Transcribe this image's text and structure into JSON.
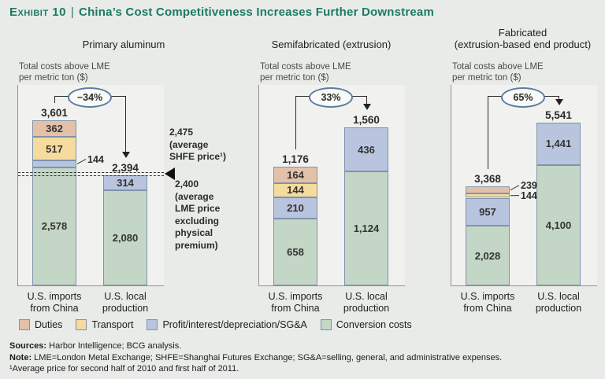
{
  "header": {
    "eyebrow": "Exhibit 10",
    "divider": "|",
    "title": "China’s Cost Competitiveness Increases Further Downstream"
  },
  "colors": {
    "duties": "#e3c1a9",
    "transport": "#f5dc9e",
    "profit": "#b9c4de",
    "conversion": "#c4d6c6",
    "segment_border": "#7f93ab",
    "title_accent": "#1c7a64",
    "page_background": "#e8ebe7"
  },
  "chart_data": [
    {
      "type": "bar",
      "stacked": true,
      "title": "Primary aluminum",
      "ylabel": "Total costs above LME\nper metric ton ($)",
      "change_badge": "−34%",
      "categories": [
        "U.S. imports\nfrom China",
        "U.S. local\nproduction"
      ],
      "bars": [
        {
          "category": "U.S. imports\nfrom China",
          "total": 3601,
          "total_label": "3,601",
          "segments": [
            {
              "series": "Duties",
              "key": "duties",
              "value": 362,
              "label": "362"
            },
            {
              "series": "Transport",
              "key": "transport",
              "value": 517,
              "label": "517"
            },
            {
              "series": "Profit/interest/depreciation/SG&A",
              "key": "profit",
              "value": 144,
              "label": "144"
            },
            {
              "series": "Conversion costs",
              "key": "conversion",
              "value": 2578,
              "label": "2,578"
            }
          ]
        },
        {
          "category": "U.S. local\nproduction",
          "total": 2394,
          "total_label": "2,394",
          "segments": [
            {
              "series": "Profit/interest/depreciation/SG&A",
              "key": "profit",
              "value": 314,
              "label": "314"
            },
            {
              "series": "Conversion costs",
              "key": "conversion",
              "value": 2080,
              "label": "2,080"
            }
          ]
        }
      ],
      "reference_lines": [
        {
          "value": 2475,
          "annotation": "2,475\n(average\nSHFE price¹)"
        },
        {
          "value": 2400,
          "annotation": "2,400\n(average\nLME price\nexcluding\nphysical\npremium)"
        }
      ]
    },
    {
      "type": "bar",
      "stacked": true,
      "title": "Semifabricated (extrusion)",
      "ylabel": "Total costs above LME\nper metric ton ($)",
      "change_badge": "33%",
      "categories": [
        "U.S. imports\nfrom China",
        "U.S. local\nproduction"
      ],
      "bars": [
        {
          "category": "U.S. imports\nfrom China",
          "total": 1176,
          "total_label": "1,176",
          "segments": [
            {
              "series": "Duties",
              "key": "duties",
              "value": 164,
              "label": "164"
            },
            {
              "series": "Transport",
              "key": "transport",
              "value": 144,
              "label": "144"
            },
            {
              "series": "Profit/interest/depreciation/SG&A",
              "key": "profit",
              "value": 210,
              "label": "210"
            },
            {
              "series": "Conversion costs",
              "key": "conversion",
              "value": 658,
              "label": "658"
            }
          ]
        },
        {
          "category": "U.S. local\nproduction",
          "total": 1560,
          "total_label": "1,560",
          "segments": [
            {
              "series": "Profit/interest/depreciation/SG&A",
              "key": "profit",
              "value": 436,
              "label": "436"
            },
            {
              "series": "Conversion costs",
              "key": "conversion",
              "value": 1124,
              "label": "1,124"
            }
          ]
        }
      ]
    },
    {
      "type": "bar",
      "stacked": true,
      "title": "Fabricated\n(extrusion-based end product)",
      "ylabel": "Total costs above LME\nper metric ton ($)",
      "change_badge": "65%",
      "categories": [
        "U.S. imports\nfrom China",
        "U.S. local\nproduction"
      ],
      "bars": [
        {
          "category": "U.S. imports\nfrom China",
          "total": 3368,
          "total_label": "3,368",
          "segments": [
            {
              "series": "Duties",
              "key": "duties",
              "value": 239,
              "label": "239"
            },
            {
              "series": "Transport",
              "key": "transport",
              "value": 144,
              "label": "144"
            },
            {
              "series": "Profit/interest/depreciation/SG&A",
              "key": "profit",
              "value": 957,
              "label": "957"
            },
            {
              "series": "Conversion costs",
              "key": "conversion",
              "value": 2028,
              "label": "2,028"
            }
          ]
        },
        {
          "category": "U.S. local\nproduction",
          "total": 5541,
          "total_label": "5,541",
          "segments": [
            {
              "series": "Profit/interest/depreciation/SG&A",
              "key": "profit",
              "value": 1441,
              "label": "1,441"
            },
            {
              "series": "Conversion costs",
              "key": "conversion",
              "value": 4100,
              "label": "4,100"
            }
          ]
        }
      ]
    }
  ],
  "legend": {
    "position": "bottom",
    "items": [
      {
        "key": "duties",
        "label": "Duties"
      },
      {
        "key": "transport",
        "label": "Transport"
      },
      {
        "key": "profit",
        "label": "Profit/interest/depreciation/SG&A"
      },
      {
        "key": "conversion",
        "label": "Conversion costs"
      }
    ]
  },
  "footer": {
    "sources_label": "Sources:",
    "sources_text": " Harbor Intelligence; BCG analysis.",
    "note_label": "Note:",
    "note_text": " LME=London Metal Exchange; SHFE=Shanghai Futures Exchange; SG&A=selling, general, and administrative expenses.",
    "footnote": "¹Average price for second half of 2010 and first half of 2011."
  }
}
